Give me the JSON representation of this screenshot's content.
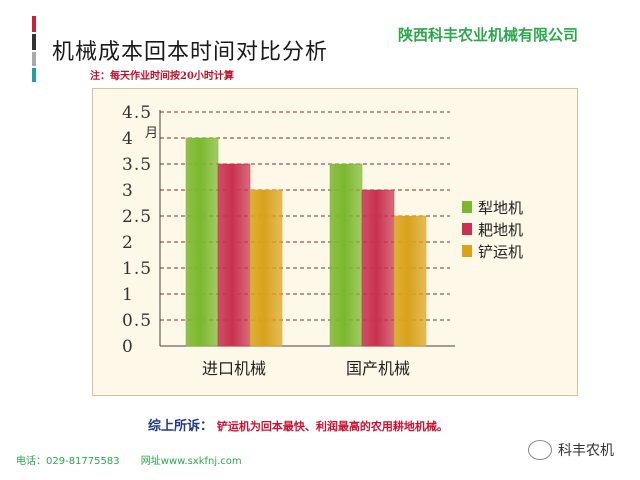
{
  "header": {
    "title": "机械成本回本时间对比分析",
    "company": "陕西科丰农业机械有限公司",
    "note": "注：每天作业时间按20小时计算"
  },
  "colors": {
    "accent_bars": [
      "#cc2233",
      "#333333",
      "#aaaaaa",
      "#22a0a0"
    ],
    "company_green": "#2aa84a"
  },
  "chart_data": {
    "type": "bar",
    "categories": [
      "进口机械",
      "国产机械"
    ],
    "series": [
      {
        "name": "犁地机",
        "values": [
          4,
          3.5
        ],
        "color": "#7cb82f"
      },
      {
        "name": "耙地机",
        "values": [
          3.5,
          3
        ],
        "color": "#c8314f"
      },
      {
        "name": "铲运机",
        "values": [
          3,
          2.5
        ],
        "color": "#d9a21b"
      }
    ],
    "ylabel": "月",
    "ylim": [
      0,
      4.5
    ],
    "yticks": [
      "0",
      "0.5",
      "1",
      "1.5",
      "2",
      "2.5",
      "3",
      "3.5",
      "4",
      "4.5"
    ],
    "grid": true,
    "legend_position": "right"
  },
  "summary": {
    "label": "综上所诉：",
    "text": "铲运机为回本最快、利润最高的农用耕地机械。"
  },
  "footer": {
    "phone": "电话：029-81775583",
    "website": "网址www.sxkfnj.com",
    "wechat_account": "科丰农机"
  }
}
